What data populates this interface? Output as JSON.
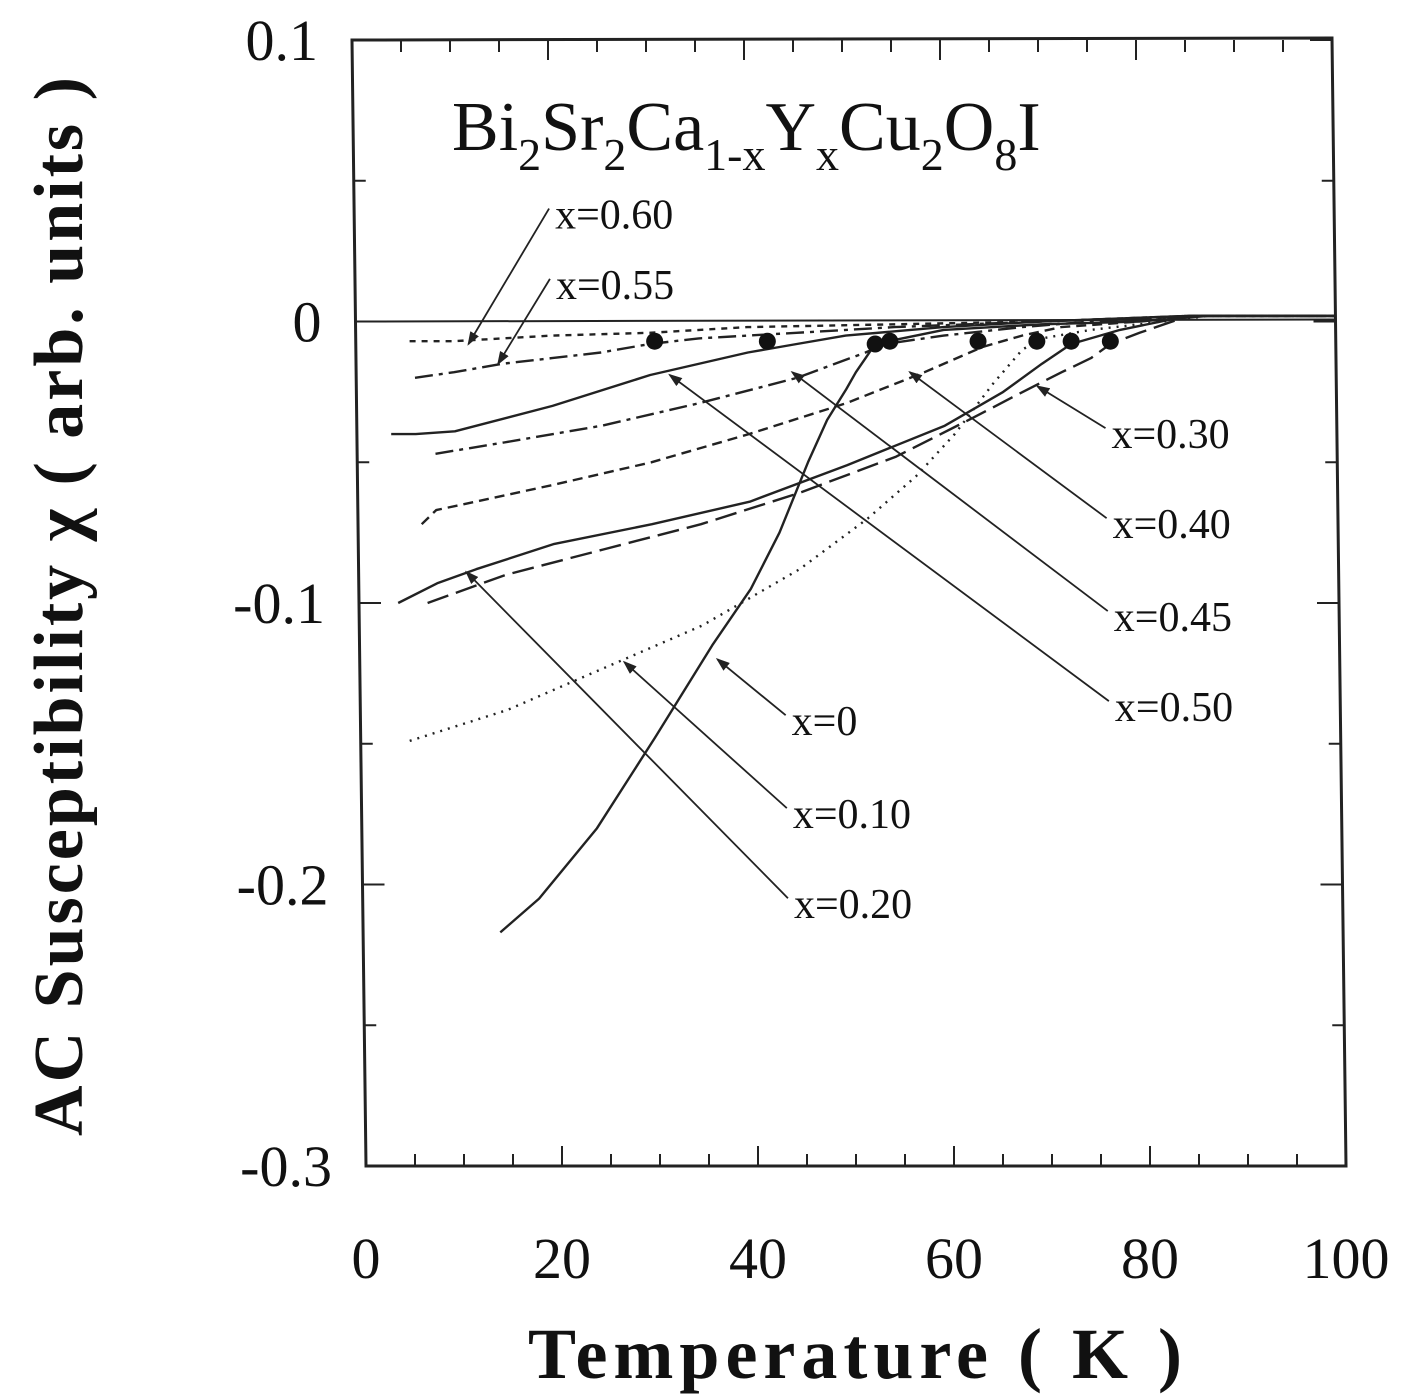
{
  "chart_data": {
    "type": "line",
    "title": "",
    "annotation": {
      "parts": [
        {
          "text": "Bi",
          "sub": false
        },
        {
          "text": "2",
          "sub": true
        },
        {
          "text": "Sr",
          "sub": false
        },
        {
          "text": "2",
          "sub": true
        },
        {
          "text": "Ca",
          "sub": false
        },
        {
          "text": "1-x",
          "sub": true
        },
        {
          "text": "Y",
          "sub": false
        },
        {
          "text": "x",
          "sub": true
        },
        {
          "text": "Cu",
          "sub": false
        },
        {
          "text": "2",
          "sub": true
        },
        {
          "text": "O",
          "sub": false
        },
        {
          "text": "8",
          "sub": true
        },
        {
          "text": "I",
          "sub": false
        }
      ]
    },
    "xlabel": "Temperature ( K )",
    "ylabel": "AC Susceptibility χ ( arb. units )",
    "xlim": [
      0,
      100
    ],
    "ylim": [
      -0.3,
      0.1
    ],
    "xticks": [
      0,
      20,
      40,
      60,
      80,
      100
    ],
    "xtick_labels": [
      "0",
      "20",
      "40",
      "60",
      "80",
      "100"
    ],
    "yticks": [
      -0.3,
      -0.2,
      -0.1,
      0,
      0.1
    ],
    "ytick_labels": [
      "-0.3",
      "-0.2",
      "-0.1",
      "0",
      "0.1"
    ],
    "grid": false,
    "legend": "none",
    "zero_line": 0,
    "series": [
      {
        "name": "x=0",
        "dash": "solid",
        "color": "#222222",
        "x": [
          14,
          18,
          24,
          30,
          36,
          40,
          43,
          46,
          48,
          50,
          51,
          52,
          53,
          60,
          70,
          80,
          87,
          100
        ],
        "y": [
          -0.217,
          -0.205,
          -0.18,
          -0.148,
          -0.115,
          -0.095,
          -0.075,
          -0.05,
          -0.035,
          -0.024,
          -0.018,
          -0.013,
          -0.008,
          -0.003,
          -0.001,
          0.0,
          0.002,
          0.002
        ],
        "marker": {
          "x": 53,
          "y": -0.008
        },
        "label": {
          "text": "x=0",
          "x": 44,
          "y": -0.142
        },
        "arrow_to": {
          "x": 36.5,
          "y": -0.12
        }
      },
      {
        "name": "x=0.10",
        "dash": "dotted",
        "color": "#222222",
        "x": [
          5,
          15,
          25,
          35,
          45,
          52,
          57,
          61,
          65,
          68,
          70,
          75,
          80,
          87,
          100
        ],
        "y": [
          -0.149,
          -0.138,
          -0.123,
          -0.108,
          -0.088,
          -0.07,
          -0.055,
          -0.04,
          -0.022,
          -0.01,
          -0.006,
          -0.003,
          -0.001,
          0.002,
          0.002
        ],
        "marker": {
          "x": 69.5,
          "y": -0.007
        },
        "label": {
          "text": "x=0.10",
          "x": 44,
          "y": -0.175
        },
        "arrow_to": {
          "x": 27,
          "y": -0.121
        }
      },
      {
        "name": "x=0.20",
        "dash": "solid",
        "color": "#222222",
        "x": [
          4,
          8,
          12,
          20,
          30,
          40,
          50,
          60,
          66,
          70,
          73,
          78,
          85,
          100
        ],
        "y": [
          -0.1,
          -0.093,
          -0.088,
          -0.079,
          -0.072,
          -0.064,
          -0.051,
          -0.037,
          -0.025,
          -0.015,
          -0.008,
          -0.003,
          0.002,
          0.002
        ],
        "marker": {
          "x": 73,
          "y": -0.007
        },
        "label": {
          "text": "x=0.20",
          "x": 44,
          "y": -0.207
        },
        "arrow_to": {
          "x": 11,
          "y": -0.089
        }
      },
      {
        "name": "x=0.30",
        "dash": "longdash",
        "color": "#222222",
        "x": [
          7,
          15,
          25,
          35,
          45,
          55,
          63,
          68,
          72,
          75,
          77,
          80,
          85,
          100
        ],
        "y": [
          -0.1,
          -0.09,
          -0.081,
          -0.072,
          -0.061,
          -0.048,
          -0.034,
          -0.025,
          -0.018,
          -0.013,
          -0.008,
          -0.004,
          0.002,
          0.002
        ],
        "marker": {
          "x": 77,
          "y": -0.007
        },
        "label": {
          "text": "x=0.30",
          "x": 77,
          "y": -0.04
        },
        "arrow_to": {
          "x": 69.5,
          "y": -0.023
        }
      },
      {
        "name": "x=0.40",
        "dash": "dashed",
        "color": "#222222",
        "x": [
          6.5,
          8,
          12,
          20,
          30,
          40,
          50,
          58,
          64,
          68,
          72,
          80,
          86,
          100
        ],
        "y": [
          -0.072,
          -0.067,
          -0.064,
          -0.058,
          -0.05,
          -0.04,
          -0.029,
          -0.018,
          -0.009,
          -0.005,
          -0.002,
          0.0,
          0.002,
          0.002
        ],
        "marker": {
          "x": 63.5,
          "y": -0.007
        },
        "label": {
          "text": "x=0.40",
          "x": 77,
          "y": -0.072
        },
        "arrow_to": {
          "x": 56.5,
          "y": -0.018
        }
      },
      {
        "name": "x=0.45",
        "dash": "dashdot",
        "color": "#222222",
        "x": [
          8,
          15,
          25,
          35,
          45,
          52,
          54,
          60,
          68,
          75,
          85,
          100
        ],
        "y": [
          -0.047,
          -0.043,
          -0.037,
          -0.029,
          -0.02,
          -0.011,
          -0.008,
          -0.005,
          -0.002,
          0.0,
          0.002,
          0.002
        ],
        "marker": {
          "x": 54.5,
          "y": -0.007
        },
        "label": {
          "text": "x=0.45",
          "x": 77,
          "y": -0.105
        },
        "arrow_to": {
          "x": 44.5,
          "y": -0.018
        }
      },
      {
        "name": "x=0.50",
        "dash": "solid",
        "color": "#222222",
        "x": [
          3.5,
          6,
          10,
          20,
          30,
          40,
          45,
          50,
          60,
          70,
          85,
          100
        ],
        "y": [
          -0.04,
          -0.04,
          -0.039,
          -0.03,
          -0.019,
          -0.011,
          -0.008,
          -0.005,
          -0.002,
          0.0,
          0.002,
          0.002
        ],
        "marker": {
          "x": 42,
          "y": -0.007
        },
        "label": {
          "text": "x=0.50",
          "x": 77,
          "y": -0.137
        },
        "arrow_to": {
          "x": 32,
          "y": -0.019
        }
      },
      {
        "name": "x=0.55",
        "dash": "dashdot",
        "color": "#222222",
        "x": [
          6,
          10,
          15,
          20,
          25,
          30,
          35,
          45,
          55,
          70,
          85,
          100
        ],
        "y": [
          -0.02,
          -0.018,
          -0.015,
          -0.013,
          -0.011,
          -0.008,
          -0.006,
          -0.004,
          -0.002,
          0.0,
          0.002,
          0.002
        ],
        "marker": {
          "x": 30.5,
          "y": -0.007
        },
        "label": {
          "text": "x=0.55",
          "x": 20.5,
          "y": 0.013
        },
        "arrow_to": {
          "x": 14.5,
          "y": -0.015
        }
      },
      {
        "name": "x=0.60",
        "dash": "shortdash",
        "color": "#222222",
        "x": [
          5.5,
          10,
          15,
          20,
          30,
          40,
          55,
          70,
          85,
          100
        ],
        "y": [
          -0.007,
          -0.007,
          -0.006,
          -0.005,
          -0.004,
          -0.002,
          -0.001,
          0.0,
          0.002,
          0.002
        ],
        "marker": null,
        "label": {
          "text": "x=0.60",
          "x": 20.5,
          "y": 0.038
        },
        "arrow_to": {
          "x": 11.5,
          "y": -0.008
        }
      }
    ]
  }
}
